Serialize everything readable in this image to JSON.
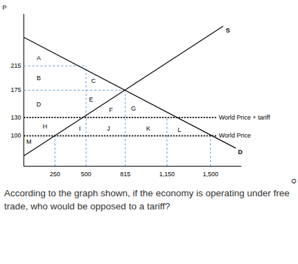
{
  "chart_data": {
    "type": "line",
    "x_label": "Q",
    "y_label": "P",
    "xlim": [
      0,
      1750
    ],
    "ylim": [
      50,
      300
    ],
    "xticks": [
      250,
      500,
      815,
      1150,
      1500
    ],
    "yticks": [
      100,
      130,
      175,
      215
    ],
    "series": [
      {
        "name": "D",
        "color": "#000000",
        "x": [
          0,
          1700
        ],
        "values": [
          262,
          80
        ]
      },
      {
        "name": "S",
        "color": "#000000",
        "x": [
          0,
          1600
        ],
        "values": [
          67,
          280
        ]
      }
    ],
    "reference_lines": [
      {
        "y": 130,
        "x": [
          0,
          1550
        ],
        "label": "World Price + tariff",
        "line_style": "dotted",
        "color": "#000000"
      },
      {
        "y": 100,
        "x": [
          0,
          1550
        ],
        "label": "World Price",
        "line_style": "dotted",
        "color": "#000000"
      }
    ],
    "guides": {
      "color": "#5b9bd5",
      "line_style": "dashed",
      "segments": [
        [
          0,
          215,
          500,
          215
        ],
        [
          0,
          175,
          815,
          175
        ],
        [
          250,
          50,
          250,
          100
        ],
        [
          500,
          50,
          500,
          215
        ],
        [
          815,
          50,
          815,
          175
        ],
        [
          1150,
          50,
          1150,
          130
        ],
        [
          1500,
          50,
          1500,
          100
        ]
      ]
    },
    "annotations": [
      {
        "text": "A",
        "x": 120,
        "y": 228
      },
      {
        "text": "B",
        "x": 120,
        "y": 195
      },
      {
        "text": "C",
        "x": 560,
        "y": 190
      },
      {
        "text": "D",
        "x": 120,
        "y": 152
      },
      {
        "text": "E",
        "x": 540,
        "y": 160
      },
      {
        "text": "F",
        "x": 700,
        "y": 142
      },
      {
        "text": "G",
        "x": 880,
        "y": 145
      },
      {
        "text": "H",
        "x": 170,
        "y": 115
      },
      {
        "text": "I",
        "x": 450,
        "y": 112
      },
      {
        "text": "J",
        "x": 680,
        "y": 112
      },
      {
        "text": "K",
        "x": 1000,
        "y": 112
      },
      {
        "text": "L",
        "x": 1250,
        "y": 110
      },
      {
        "text": "M",
        "x": 40,
        "y": 90
      }
    ],
    "question": "According to the graph shown, if the economy is operating under free trade, who would be opposed to a tariff?"
  }
}
